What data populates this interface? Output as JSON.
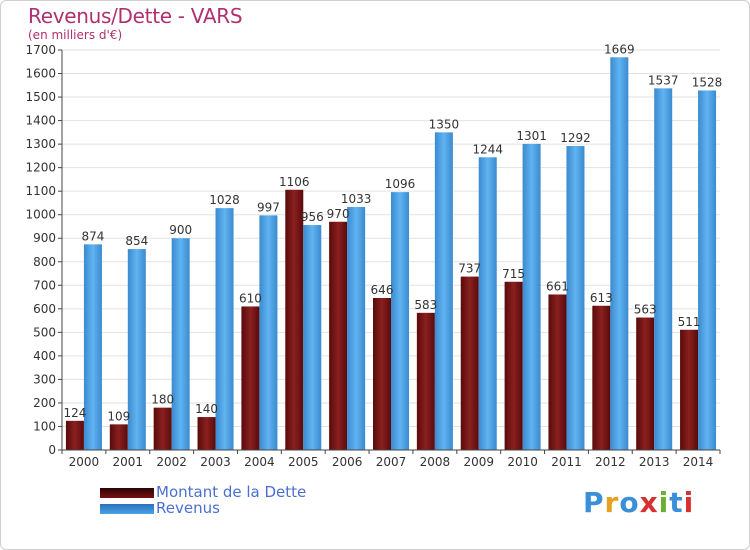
{
  "header": {
    "title": "Revenus/Dette - VARS",
    "subtitle": "(en milliers d'€)"
  },
  "legend": {
    "items": [
      {
        "label": "Montant de la Dette",
        "color": "#7a1010"
      },
      {
        "label": "Revenus",
        "color": "#4aa3e6"
      }
    ]
  },
  "logo": {
    "text": "Proxiti",
    "colors": [
      "#3a8fd8",
      "#e8a020",
      "#3a8fd8",
      "#d83030",
      "#6ab030",
      "#3a8fd8",
      "#d83030"
    ]
  },
  "chart_data": {
    "type": "bar",
    "categories": [
      "2000",
      "2001",
      "2002",
      "2003",
      "2004",
      "2005",
      "2006",
      "2007",
      "2008",
      "2009",
      "2010",
      "2011",
      "2012",
      "2013",
      "2014"
    ],
    "series": [
      {
        "name": "Montant de la Dette",
        "values": [
          124,
          109,
          180,
          140,
          610,
          1106,
          970,
          646,
          583,
          737,
          715,
          661,
          613,
          563,
          511
        ],
        "color": "#7a1010"
      },
      {
        "name": "Revenus",
        "values": [
          874,
          854,
          900,
          1028,
          997,
          956,
          1033,
          1096,
          1350,
          1244,
          1301,
          1292,
          1669,
          1537,
          1528
        ],
        "color": "#4aa3e6"
      }
    ],
    "ylim": [
      0,
      1700
    ],
    "yticks": [
      0,
      100,
      200,
      300,
      400,
      500,
      600,
      700,
      800,
      900,
      1000,
      1100,
      1200,
      1300,
      1400,
      1500,
      1600,
      1700
    ],
    "grid": true
  }
}
